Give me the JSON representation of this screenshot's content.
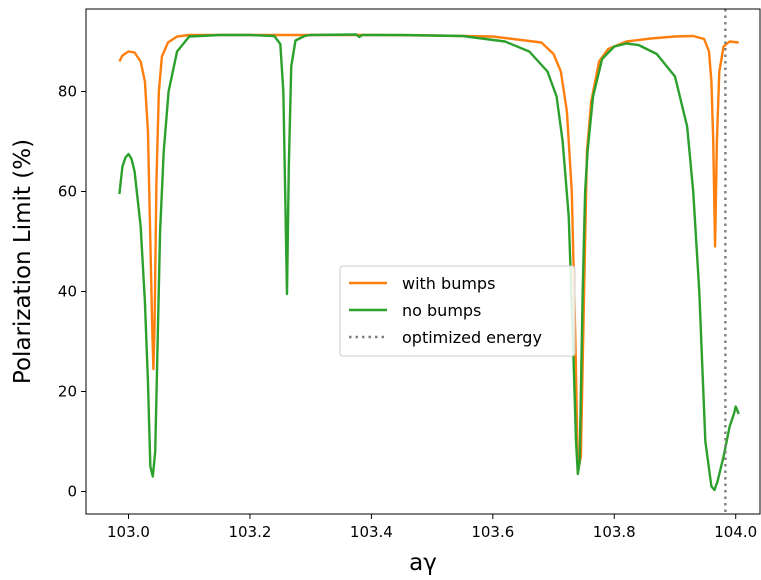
{
  "chart_data": {
    "type": "line",
    "xlabel": "aγ",
    "ylabel": "Polarization Limit  (%)",
    "xlim": [
      102.93,
      104.04
    ],
    "ylim": [
      -4.5,
      96.5
    ],
    "xticks": [
      103.0,
      103.2,
      103.4,
      103.6,
      103.8,
      104.0
    ],
    "xtick_labels": [
      "103.0",
      "103.2",
      "103.4",
      "103.6",
      "103.8",
      "104.0"
    ],
    "yticks": [
      0,
      20,
      40,
      60,
      80
    ],
    "ytick_labels": [
      "0",
      "20",
      "40",
      "60",
      "80"
    ],
    "grid": false,
    "legend_position": "center-right",
    "series": [
      {
        "name": "with bumps",
        "color": "#ff7f0e",
        "style": "solid",
        "points": [
          [
            102.985,
            86
          ],
          [
            102.99,
            87.2
          ],
          [
            103.0,
            88
          ],
          [
            103.01,
            87.8
          ],
          [
            103.02,
            86
          ],
          [
            103.027,
            82
          ],
          [
            103.032,
            72
          ],
          [
            103.036,
            50
          ],
          [
            103.039,
            33
          ],
          [
            103.041,
            24.5
          ],
          [
            103.043,
            34
          ],
          [
            103.046,
            62
          ],
          [
            103.05,
            80
          ],
          [
            103.055,
            87
          ],
          [
            103.065,
            89.8
          ],
          [
            103.08,
            91
          ],
          [
            103.1,
            91.3
          ],
          [
            103.2,
            91.3
          ],
          [
            103.3,
            91.3
          ],
          [
            103.4,
            91.3
          ],
          [
            103.5,
            91.2
          ],
          [
            103.6,
            91
          ],
          [
            103.68,
            89.8
          ],
          [
            103.7,
            87.5
          ],
          [
            103.712,
            84
          ],
          [
            103.722,
            76
          ],
          [
            103.73,
            60
          ],
          [
            103.736,
            30
          ],
          [
            103.74,
            4
          ],
          [
            103.745,
            7
          ],
          [
            103.75,
            38
          ],
          [
            103.755,
            68
          ],
          [
            103.762,
            78
          ],
          [
            103.775,
            86
          ],
          [
            103.79,
            88.5
          ],
          [
            103.82,
            90
          ],
          [
            103.86,
            90.6
          ],
          [
            103.9,
            91
          ],
          [
            103.93,
            91.1
          ],
          [
            103.948,
            90.5
          ],
          [
            103.956,
            88
          ],
          [
            103.96,
            82
          ],
          [
            103.963,
            70
          ],
          [
            103.966,
            49
          ],
          [
            103.969,
            70
          ],
          [
            103.973,
            84
          ],
          [
            103.98,
            89
          ],
          [
            103.99,
            90
          ],
          [
            104.005,
            89.8
          ]
        ]
      },
      {
        "name": "no bumps",
        "color": "#2ca02c",
        "style": "solid",
        "points": [
          [
            102.985,
            59.5
          ],
          [
            102.99,
            65
          ],
          [
            102.995,
            66.8
          ],
          [
            103.0,
            67.5
          ],
          [
            103.005,
            66.5
          ],
          [
            103.01,
            64
          ],
          [
            103.02,
            53
          ],
          [
            103.027,
            38
          ],
          [
            103.032,
            22
          ],
          [
            103.036,
            5
          ],
          [
            103.04,
            3
          ],
          [
            103.044,
            8
          ],
          [
            103.048,
            30
          ],
          [
            103.052,
            52
          ],
          [
            103.058,
            68
          ],
          [
            103.066,
            80
          ],
          [
            103.08,
            88
          ],
          [
            103.1,
            91
          ],
          [
            103.15,
            91.3
          ],
          [
            103.2,
            91.3
          ],
          [
            103.24,
            91.1
          ],
          [
            103.25,
            89.5
          ],
          [
            103.255,
            80
          ],
          [
            103.258,
            60
          ],
          [
            103.261,
            39.5
          ],
          [
            103.264,
            65
          ],
          [
            103.268,
            85
          ],
          [
            103.275,
            90.2
          ],
          [
            103.29,
            91.1
          ],
          [
            103.3,
            91.3
          ],
          [
            103.375,
            91.4
          ],
          [
            103.38,
            90.9
          ],
          [
            103.385,
            91.3
          ],
          [
            103.45,
            91.3
          ],
          [
            103.55,
            91.1
          ],
          [
            103.62,
            90
          ],
          [
            103.66,
            88
          ],
          [
            103.69,
            84
          ],
          [
            103.705,
            79
          ],
          [
            103.715,
            70
          ],
          [
            103.725,
            55
          ],
          [
            103.732,
            30
          ],
          [
            103.737,
            10
          ],
          [
            103.74,
            3.5
          ],
          [
            103.743,
            6
          ],
          [
            103.748,
            40
          ],
          [
            103.752,
            60
          ],
          [
            103.756,
            68
          ],
          [
            103.765,
            79
          ],
          [
            103.78,
            86.5
          ],
          [
            103.8,
            89
          ],
          [
            103.82,
            89.6
          ],
          [
            103.84,
            89.3
          ],
          [
            103.87,
            87.5
          ],
          [
            103.9,
            83
          ],
          [
            103.92,
            73
          ],
          [
            103.93,
            60
          ],
          [
            103.94,
            40
          ],
          [
            103.95,
            10
          ],
          [
            103.96,
            1
          ],
          [
            103.965,
            0.3
          ],
          [
            103.97,
            2
          ],
          [
            103.98,
            7
          ],
          [
            103.99,
            13
          ],
          [
            103.997,
            15.5
          ],
          [
            104.0,
            17
          ],
          [
            104.005,
            15.5
          ]
        ]
      },
      {
        "name": "optimized energy",
        "color": "#7f7f7f",
        "style": "dotted",
        "vertical_x": 103.983
      }
    ]
  }
}
